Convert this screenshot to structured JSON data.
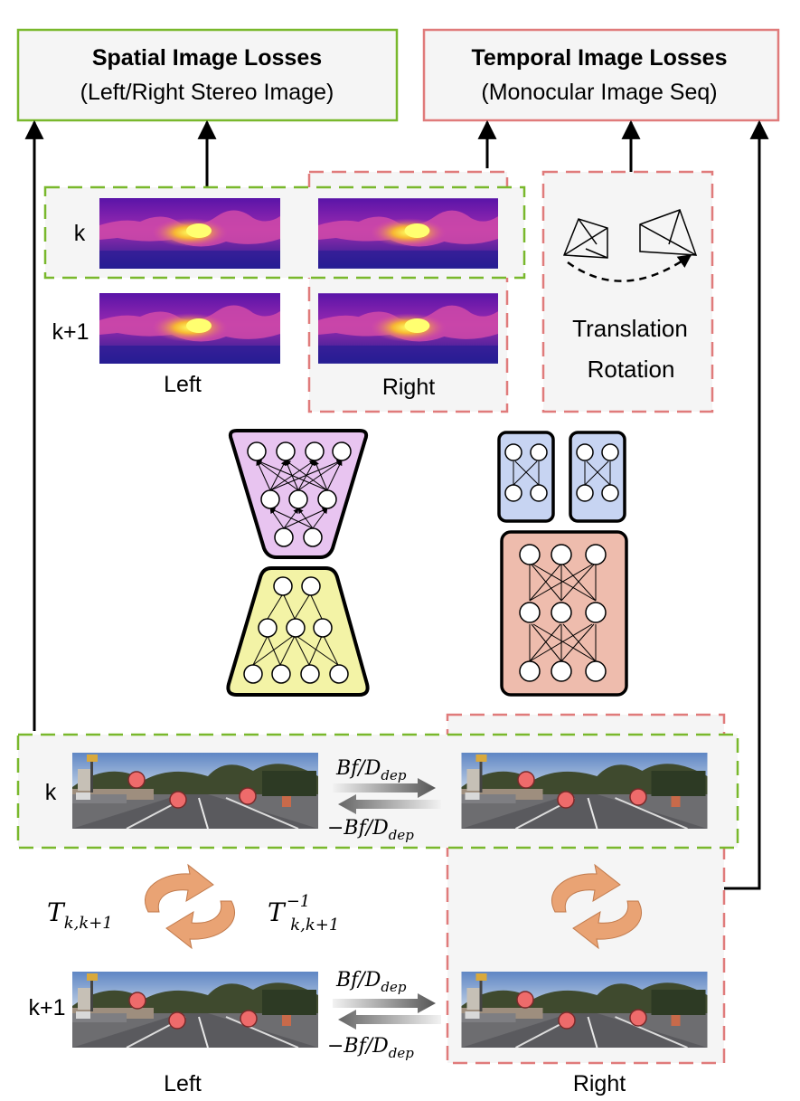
{
  "boxes": {
    "spatial": {
      "title": "Spatial Image Losses",
      "subtitle": "(Left/Right Stereo Image)"
    },
    "temporal": {
      "title": "Temporal Image Losses",
      "subtitle": "(Monocular Image Seq)"
    }
  },
  "depth_panel": {
    "row_k": "k",
    "row_k1": "k+1",
    "left_label": "Left",
    "right_label": "Right"
  },
  "pose_panel": {
    "line1": "Translation",
    "line2": "Rotation"
  },
  "bottom": {
    "row_k": "k",
    "row_k1": "k+1",
    "left_label": "Left",
    "right_label": "Right",
    "arrow_fwd": "Bf/D",
    "arrow_bwd": "−Bf/D",
    "dep_sub": "dep",
    "T_main": "T",
    "T_sub": "k,k+1",
    "Tinv_sup": "−1"
  },
  "colors": {
    "green": "#79b82c",
    "red": "#e07b7b",
    "purple": "#e8c4f0",
    "yellow": "#f3f3a6",
    "blue": "#c7d4f2",
    "salmon": "#eebcad",
    "dot": "#ee6b6b",
    "orange": "#e9a374"
  }
}
